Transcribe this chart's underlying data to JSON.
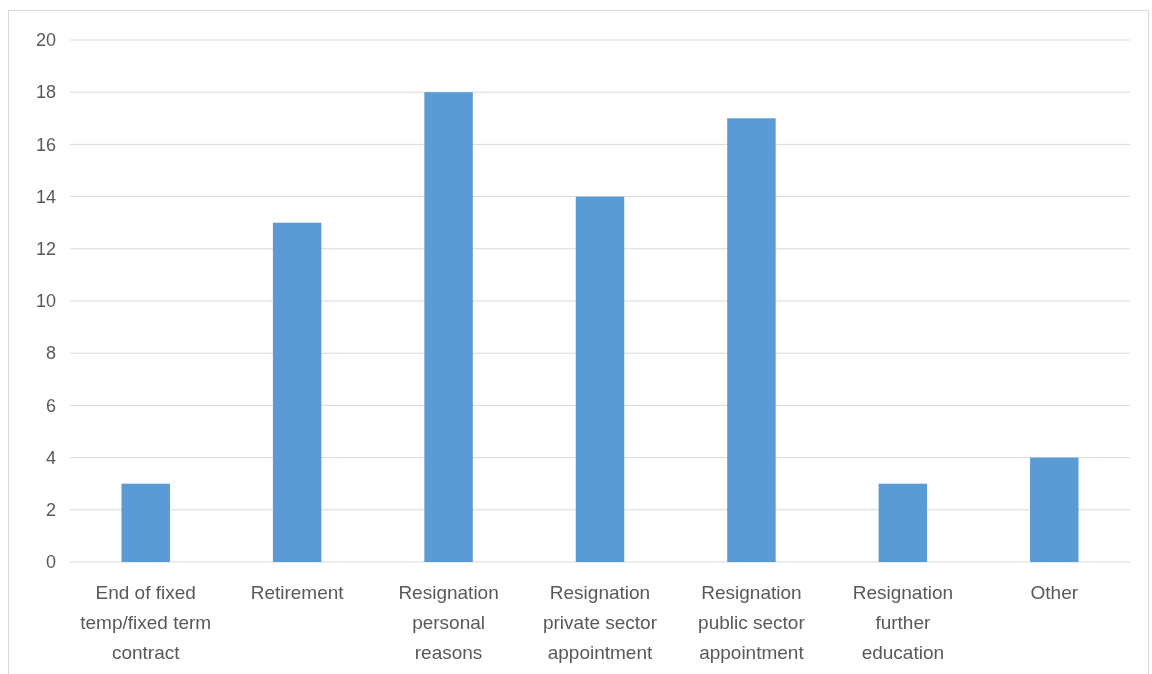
{
  "chart_data": {
    "type": "bar",
    "categories": [
      "End of fixed temp/fixed term contract",
      "Retirement",
      "Resignation personal reasons",
      "Resignation private sector appointment",
      "Resignation public sector appointment",
      "Resignation further education",
      "Other"
    ],
    "values": [
      3,
      13,
      18,
      14,
      17,
      3,
      4
    ],
    "color": "#5b9bd5",
    "ylim": [
      0,
      20
    ],
    "yticks": [
      0,
      2,
      4,
      6,
      8,
      10,
      12,
      14,
      16,
      18,
      20
    ],
    "grid": "y"
  }
}
